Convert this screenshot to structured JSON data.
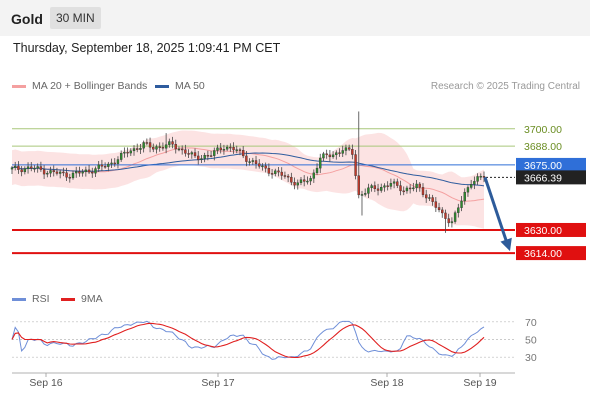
{
  "header": {
    "title": "Gold",
    "timeframe": "30 MIN"
  },
  "timestamp": "Thursday, September 18, 2025 1:09:41 PM CET",
  "legend": {
    "ma20": {
      "label": "MA 20 + Bollinger Bands",
      "color": "#f4a0a0"
    },
    "ma50": {
      "label": "MA 50",
      "color": "#2e5c9e"
    }
  },
  "credit": "Research © 2025 Trading Central",
  "rsi_legend": {
    "rsi": {
      "label": "RSI",
      "color": "#6f8fd8"
    },
    "ma9": {
      "label": "9MA",
      "color": "#e02020"
    }
  },
  "chart_data": [
    {
      "type": "candlestick",
      "title": "Gold",
      "timeframe": "30 MIN",
      "x_ticks": [
        "Sep 16",
        "Sep 17",
        "Sep 18",
        "Sep 19"
      ],
      "ylim": [
        3594,
        3722
      ],
      "levels": [
        {
          "value": 3700.0,
          "label": "3700.00",
          "kind": "resistance",
          "color": "#a9c77a"
        },
        {
          "value": 3688.0,
          "label": "3688.00",
          "kind": "resistance",
          "color": "#a9c77a"
        },
        {
          "value": 3675.0,
          "label": "3675.00",
          "kind": "pivot",
          "color": "#2f6fd8"
        },
        {
          "value": 3630.0,
          "label": "3630.00",
          "kind": "support",
          "color": "#e01010"
        },
        {
          "value": 3614.0,
          "label": "3614.00",
          "kind": "support",
          "color": "#e01010"
        }
      ],
      "last_price": {
        "value": 3666.39,
        "label": "3666.39"
      },
      "forecast_arrow": {
        "from": 3666.39,
        "to": 3614.0
      },
      "up_color": "#2e8b2e",
      "down_color": "#c0392b"
    },
    {
      "type": "line",
      "name": "RSI panel",
      "y_ticks": [
        "70",
        "50",
        "30"
      ],
      "ylim": [
        20,
        80
      ],
      "series": [
        {
          "name": "RSI",
          "color": "#6f8fd8"
        },
        {
          "name": "9MA",
          "color": "#e02020"
        }
      ]
    }
  ]
}
